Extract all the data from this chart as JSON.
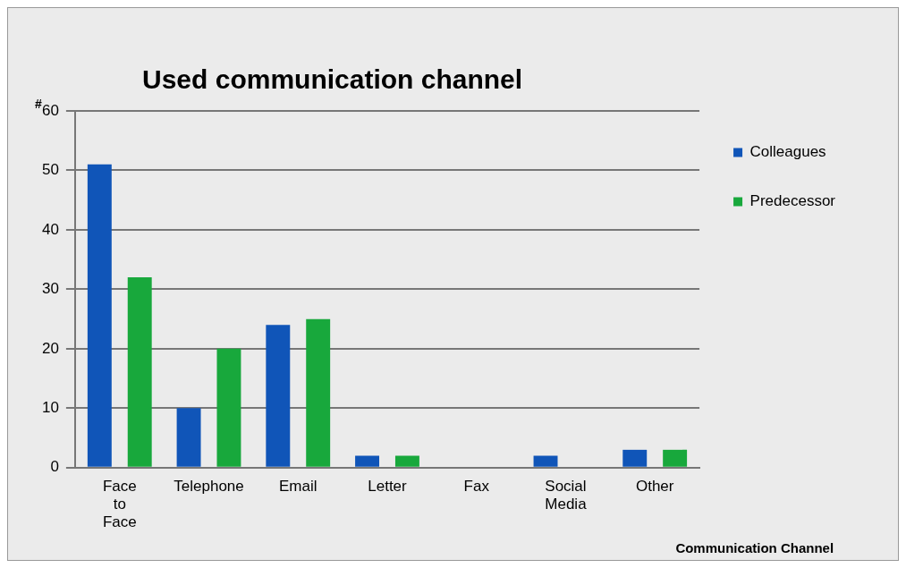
{
  "chart_data": {
    "type": "bar",
    "title": "Used communication channel",
    "ylabel": "#",
    "xlabel": "Communication Channel",
    "categories": [
      "Face to Face",
      "Telephone",
      "Email",
      "Letter",
      "Fax",
      "Social Media",
      "Other"
    ],
    "series": [
      {
        "name": "Colleagues",
        "color": "#1055b8",
        "values": [
          51,
          10,
          24,
          2,
          0,
          2,
          3
        ]
      },
      {
        "name": "Predecessor",
        "color": "#18a83c",
        "values": [
          32,
          20,
          25,
          2,
          0,
          0,
          3
        ]
      }
    ],
    "ylim": [
      0,
      60
    ],
    "yticks": [
      0,
      10,
      20,
      30,
      40,
      50,
      60
    ],
    "grid": "y",
    "legend": "top right"
  }
}
